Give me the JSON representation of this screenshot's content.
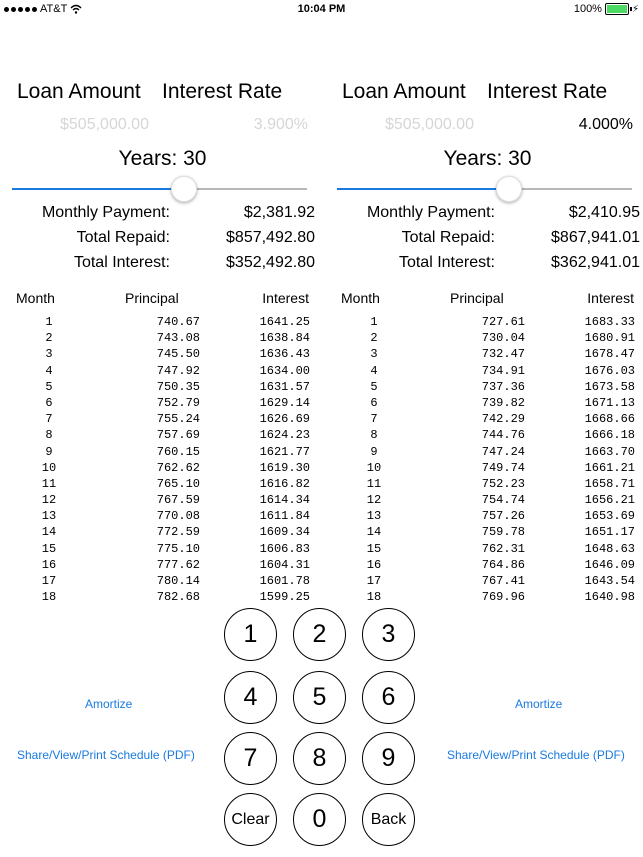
{
  "status_bar": {
    "carrier": "AT&T",
    "time": "10:04 PM",
    "battery_percent": "100%",
    "wifi_icon": "wifi-icon",
    "battery_icon": "battery-icon",
    "battery_color": "#4cd964"
  },
  "labels": {
    "loan_amount": "Loan Amount",
    "interest_rate": "Interest Rate",
    "monthly_payment": "Monthly Payment:",
    "total_repaid": "Total Repaid:",
    "total_interest": "Total Interest:",
    "col_month": "Month",
    "col_principal": "Principal",
    "col_interest": "Interest"
  },
  "left": {
    "loan_amount": "$505,000.00",
    "interest_rate": "3.900%",
    "years_text": "Years: 30",
    "slider_fraction": 0.58,
    "monthly_payment": "$2,381.92",
    "total_repaid": "$857,492.80",
    "total_interest": "$352,492.80",
    "rows": [
      [
        "1",
        "740.67",
        "1641.25"
      ],
      [
        "2",
        "743.08",
        "1638.84"
      ],
      [
        "3",
        "745.50",
        "1636.43"
      ],
      [
        "4",
        "747.92",
        "1634.00"
      ],
      [
        "5",
        "750.35",
        "1631.57"
      ],
      [
        "6",
        "752.79",
        "1629.14"
      ],
      [
        "7",
        "755.24",
        "1626.69"
      ],
      [
        "8",
        "757.69",
        "1624.23"
      ],
      [
        "9",
        "760.15",
        "1621.77"
      ],
      [
        "10",
        "762.62",
        "1619.30"
      ],
      [
        "11",
        "765.10",
        "1616.82"
      ],
      [
        "12",
        "767.59",
        "1614.34"
      ],
      [
        "13",
        "770.08",
        "1611.84"
      ],
      [
        "14",
        "772.59",
        "1609.34"
      ],
      [
        "15",
        "775.10",
        "1606.83"
      ],
      [
        "16",
        "777.62",
        "1604.31"
      ],
      [
        "17",
        "780.14",
        "1601.78"
      ],
      [
        "18",
        "782.68",
        "1599.25"
      ]
    ]
  },
  "right": {
    "loan_amount": "$505,000.00",
    "interest_rate": "4.000%",
    "years_text": "Years: 30",
    "slider_fraction": 0.58,
    "monthly_payment": "$2,410.95",
    "total_repaid": "$867,941.01",
    "total_interest": "$362,941.01",
    "rows": [
      [
        "1",
        "727.61",
        "1683.33"
      ],
      [
        "2",
        "730.04",
        "1680.91"
      ],
      [
        "3",
        "732.47",
        "1678.47"
      ],
      [
        "4",
        "734.91",
        "1676.03"
      ],
      [
        "5",
        "737.36",
        "1673.58"
      ],
      [
        "6",
        "739.82",
        "1671.13"
      ],
      [
        "7",
        "742.29",
        "1668.66"
      ],
      [
        "8",
        "744.76",
        "1666.18"
      ],
      [
        "9",
        "747.24",
        "1663.70"
      ],
      [
        "10",
        "749.74",
        "1661.21"
      ],
      [
        "11",
        "752.23",
        "1658.71"
      ],
      [
        "12",
        "754.74",
        "1656.21"
      ],
      [
        "13",
        "757.26",
        "1653.69"
      ],
      [
        "14",
        "759.78",
        "1651.17"
      ],
      [
        "15",
        "762.31",
        "1648.63"
      ],
      [
        "16",
        "764.86",
        "1646.09"
      ],
      [
        "17",
        "767.41",
        "1643.54"
      ],
      [
        "18",
        "769.96",
        "1640.98"
      ]
    ]
  },
  "keypad": {
    "k1": "1",
    "k2": "2",
    "k3": "3",
    "k4": "4",
    "k5": "5",
    "k6": "6",
    "k7": "7",
    "k8": "8",
    "k9": "9",
    "clear": "Clear",
    "k0": "0",
    "back": "Back"
  },
  "actions": {
    "amortize": "Amortize",
    "share": "Share/View/Print Schedule (PDF)"
  },
  "colors": {
    "accent": "#1a7ae0",
    "placeholder": "#d6d6d6"
  }
}
